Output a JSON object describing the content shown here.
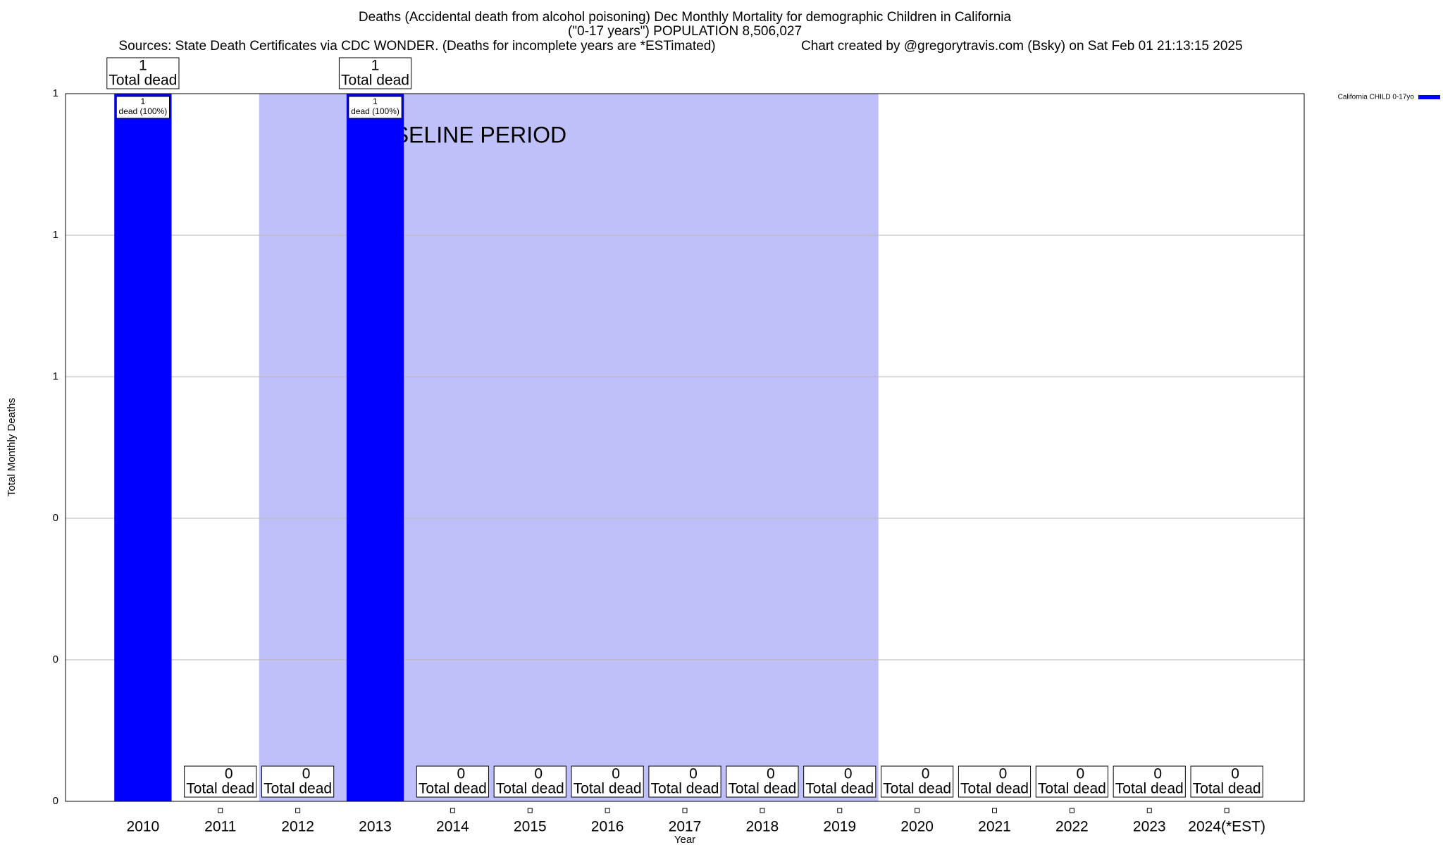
{
  "chart_data": {
    "type": "bar",
    "title": "Deaths (Accidental death from alcohol poisoning) Dec Monthly Mortality for demographic Children in California",
    "title_line2": "(\"0-17 years\") POPULATION 8,506,027",
    "subtitle": "Sources: State Death Certificates via CDC WONDER. (Deaths for incomplete years are *ESTimated)",
    "credit": "Chart created by @gregorytravis.com (Bsky) on Sat Feb 01 21:13:15 2025",
    "x_label": "Year",
    "y_label": "Total Monthly Deaths",
    "categories": [
      "2010",
      "2011",
      "2012",
      "2013",
      "2014",
      "2015",
      "2016",
      "2017",
      "2018",
      "2019",
      "2020",
      "2021",
      "2022",
      "2023",
      "2024(*EST)"
    ],
    "series": [
      {
        "name": "California CHILD 0-17yo",
        "color": "#0000ff",
        "values": [
          1,
          0,
          0,
          1,
          0,
          0,
          0,
          0,
          0,
          0,
          0,
          0,
          0,
          0,
          0
        ]
      }
    ],
    "total_label": "Total dead",
    "bar_label": "dead (100%)",
    "baseline": {
      "label": "BASELINE PERIOD",
      "start": "2012",
      "end": "2019",
      "color": "#bfbffa"
    },
    "ylim": [
      0,
      1
    ],
    "yticks": [
      0,
      {
        "value": 0.2,
        "label": "0"
      },
      {
        "value": 0.4,
        "label": "0"
      },
      {
        "value": 0.6,
        "label": "1"
      },
      {
        "value": 0.8,
        "label": "1"
      },
      1
    ],
    "grid": true,
    "legend": "top-right"
  }
}
